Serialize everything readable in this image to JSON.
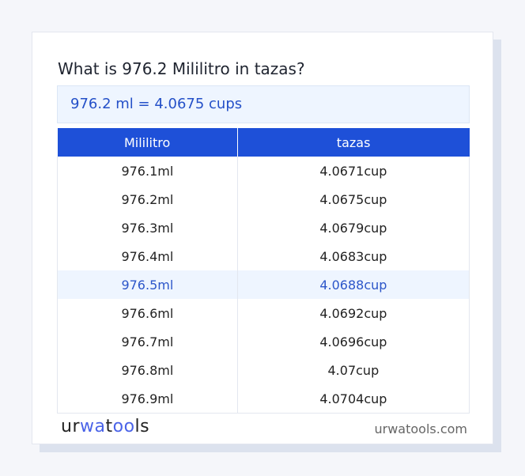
{
  "title": "What is 976.2 Mililitro in tazas?",
  "result": "976.2 ml = 4.0675 cups",
  "table": {
    "headers": [
      "Mililitro",
      "tazas"
    ],
    "rows": [
      [
        "976.1ml",
        "4.0671cup"
      ],
      [
        "976.2ml",
        "4.0675cup"
      ],
      [
        "976.3ml",
        "4.0679cup"
      ],
      [
        "976.4ml",
        "4.0683cup"
      ],
      [
        "976.5ml",
        "4.0688cup"
      ],
      [
        "976.6ml",
        "4.0692cup"
      ],
      [
        "976.7ml",
        "4.0696cup"
      ],
      [
        "976.8ml",
        "4.07cup"
      ],
      [
        "976.9ml",
        "4.0704cup"
      ]
    ],
    "highlighted_row": 4
  },
  "footer": {
    "logo": "urwatools",
    "site": "urwatools.com"
  },
  "colors": {
    "accent": "#1e50d8",
    "highlight_bg": "#eef5ff"
  }
}
